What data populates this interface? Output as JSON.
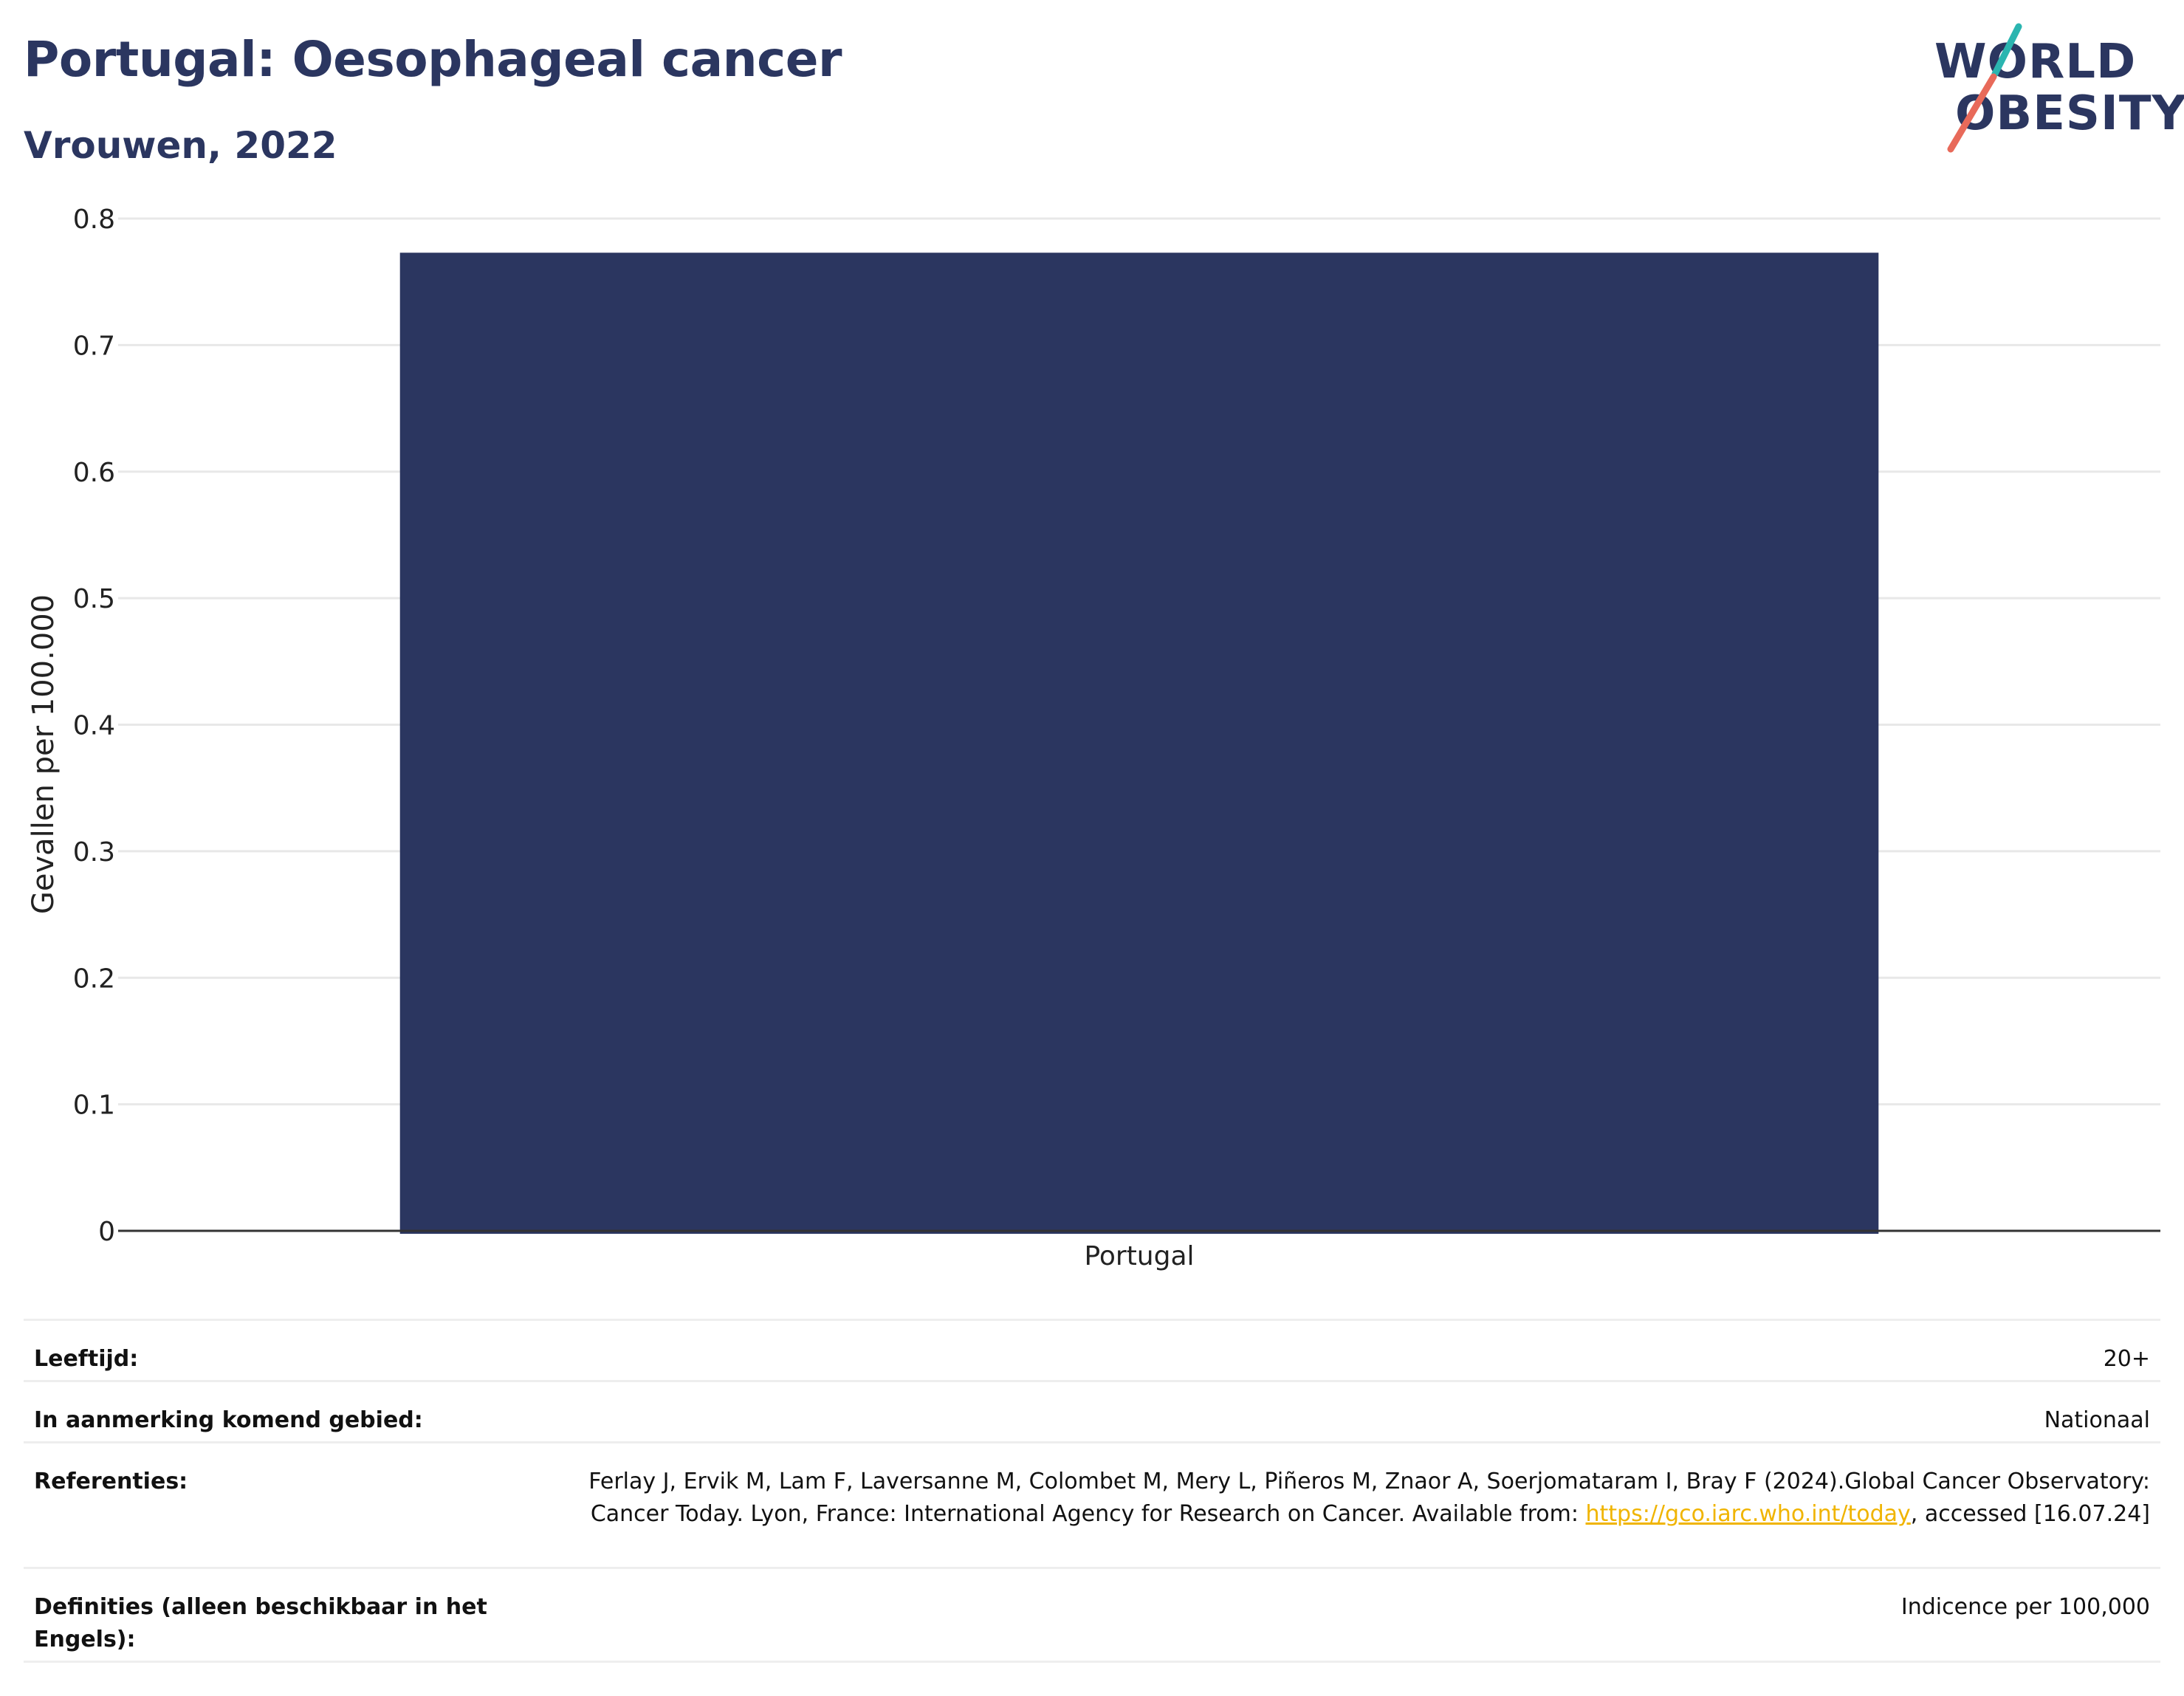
{
  "header": {
    "title": "Portugal: Oesophageal cancer",
    "subtitle": "Vrouwen, 2022"
  },
  "logo": {
    "line1": "WORLD",
    "line2": "OBESITY",
    "colors": {
      "text": "#2b3660",
      "slash_top": "#2bb5b0",
      "slash_bottom": "#e86a5a"
    }
  },
  "chart_data": {
    "type": "bar",
    "categories": [
      "Portugal"
    ],
    "values": [
      0.773
    ],
    "ylabel": "Gevallen per 100.000",
    "xlabel": "",
    "ylim": [
      0,
      0.8
    ],
    "yticks": [
      0,
      0.1,
      0.2,
      0.3,
      0.4,
      0.5,
      0.6,
      0.7,
      0.8
    ],
    "ytick_labels": [
      "0",
      "0.1",
      "0.2",
      "0.3",
      "0.4",
      "0.5",
      "0.6",
      "0.7",
      "0.8"
    ],
    "grid": true,
    "bar_color": "#2b3660"
  },
  "meta": {
    "age_label": "Leeftijd:",
    "age_value": "20+",
    "area_label": "In aanmerking komend gebied:",
    "area_value": "Nationaal",
    "ref_label": "Referenties:",
    "ref_text_1": "Ferlay J, Ervik M, Lam F, Laversanne M, Colombet M, Mery L, Piñeros M, Znaor A, Soerjomataram I, Bray F (2024).Global Cancer Observatory: Cancer Today. Lyon, France: International Agency for Research on Cancer. Available from: ",
    "ref_link": "https://gco.iarc.who.int/today",
    "ref_text_2": ", accessed [16.07.24]",
    "def_label": "Definities (alleen beschikbaar in het Engels):",
    "def_value": "Indicence per 100,000"
  }
}
